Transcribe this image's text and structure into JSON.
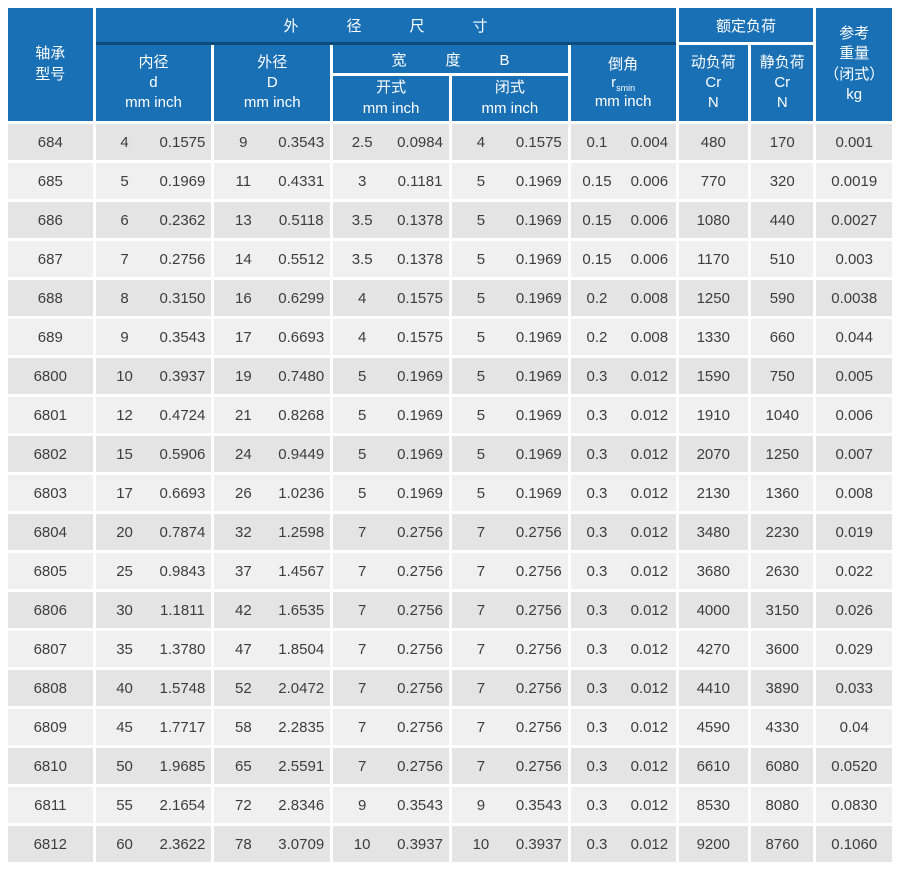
{
  "table": {
    "header": {
      "model": "轴承\n型号",
      "dim_band": "外径尺寸",
      "load_band": "额定负荷",
      "weight": "参考\n重量\n（闭式）\nkg",
      "bore": "内径\nd\nmm inch",
      "outer": "外径\nD\nmm inch",
      "width_band": "宽度B",
      "open": "开式\nmm inch",
      "closed": "闭式\nmm inch",
      "chamfer": {
        "title": "倒角",
        "sym": "r",
        "sub": "smin",
        "unit": "mm inch"
      },
      "dynamic_load": "动负荷\nCr\nN",
      "static_load": "静负荷\nCr\nN"
    },
    "rows": [
      [
        "684",
        "4",
        "0.1575",
        "9",
        "0.3543",
        "2.5",
        "0.0984",
        "4",
        "0.1575",
        "0.1",
        "0.004",
        "480",
        "170",
        "0.001"
      ],
      [
        "685",
        "5",
        "0.1969",
        "11",
        "0.4331",
        "3",
        "0.1181",
        "5",
        "0.1969",
        "0.15",
        "0.006",
        "770",
        "320",
        "0.0019"
      ],
      [
        "686",
        "6",
        "0.2362",
        "13",
        "0.5118",
        "3.5",
        "0.1378",
        "5",
        "0.1969",
        "0.15",
        "0.006",
        "1080",
        "440",
        "0.0027"
      ],
      [
        "687",
        "7",
        "0.2756",
        "14",
        "0.5512",
        "3.5",
        "0.1378",
        "5",
        "0.1969",
        "0.15",
        "0.006",
        "1170",
        "510",
        "0.003"
      ],
      [
        "688",
        "8",
        "0.3150",
        "16",
        "0.6299",
        "4",
        "0.1575",
        "5",
        "0.1969",
        "0.2",
        "0.008",
        "1250",
        "590",
        "0.0038"
      ],
      [
        "689",
        "9",
        "0.3543",
        "17",
        "0.6693",
        "4",
        "0.1575",
        "5",
        "0.1969",
        "0.2",
        "0.008",
        "1330",
        "660",
        "0.044"
      ],
      [
        "6800",
        "10",
        "0.3937",
        "19",
        "0.7480",
        "5",
        "0.1969",
        "5",
        "0.1969",
        "0.3",
        "0.012",
        "1590",
        "750",
        "0.005"
      ],
      [
        "6801",
        "12",
        "0.4724",
        "21",
        "0.8268",
        "5",
        "0.1969",
        "5",
        "0.1969",
        "0.3",
        "0.012",
        "1910",
        "1040",
        "0.006"
      ],
      [
        "6802",
        "15",
        "0.5906",
        "24",
        "0.9449",
        "5",
        "0.1969",
        "5",
        "0.1969",
        "0.3",
        "0.012",
        "2070",
        "1250",
        "0.007"
      ],
      [
        "6803",
        "17",
        "0.6693",
        "26",
        "1.0236",
        "5",
        "0.1969",
        "5",
        "0.1969",
        "0.3",
        "0.012",
        "2130",
        "1360",
        "0.008"
      ],
      [
        "6804",
        "20",
        "0.7874",
        "32",
        "1.2598",
        "7",
        "0.2756",
        "7",
        "0.2756",
        "0.3",
        "0.012",
        "3480",
        "2230",
        "0.019"
      ],
      [
        "6805",
        "25",
        "0.9843",
        "37",
        "1.4567",
        "7",
        "0.2756",
        "7",
        "0.2756",
        "0.3",
        "0.012",
        "3680",
        "2630",
        "0.022"
      ],
      [
        "6806",
        "30",
        "1.1811",
        "42",
        "1.6535",
        "7",
        "0.2756",
        "7",
        "0.2756",
        "0.3",
        "0.012",
        "4000",
        "3150",
        "0.026"
      ],
      [
        "6807",
        "35",
        "1.3780",
        "47",
        "1.8504",
        "7",
        "0.2756",
        "7",
        "0.2756",
        "0.3",
        "0.012",
        "4270",
        "3600",
        "0.029"
      ],
      [
        "6808",
        "40",
        "1.5748",
        "52",
        "2.0472",
        "7",
        "0.2756",
        "7",
        "0.2756",
        "0.3",
        "0.012",
        "4410",
        "3890",
        "0.033"
      ],
      [
        "6809",
        "45",
        "1.7717",
        "58",
        "2.2835",
        "7",
        "0.2756",
        "7",
        "0.2756",
        "0.3",
        "0.012",
        "4590",
        "4330",
        "0.04"
      ],
      [
        "6810",
        "50",
        "1.9685",
        "65",
        "2.5591",
        "7",
        "0.2756",
        "7",
        "0.2756",
        "0.3",
        "0.012",
        "6610",
        "6080",
        "0.0520"
      ],
      [
        "6811",
        "55",
        "2.1654",
        "72",
        "2.8346",
        "9",
        "0.3543",
        "9",
        "0.3543",
        "0.3",
        "0.012",
        "8530",
        "8080",
        "0.0830"
      ],
      [
        "6812",
        "60",
        "2.3622",
        "78",
        "3.0709",
        "10",
        "0.3937",
        "10",
        "0.3937",
        "0.3",
        "0.012",
        "9200",
        "8760",
        "0.1060"
      ]
    ]
  },
  "colors": {
    "header_bg": "#1a70b5",
    "header_divider": "#0d4b7d",
    "row_dark": "#e4e4e4",
    "row_light": "#f0f0f0",
    "text": "#3d3d3d",
    "header_text": "#ffffff"
  }
}
